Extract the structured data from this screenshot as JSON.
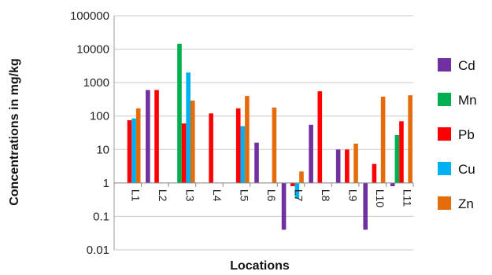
{
  "chart_data": {
    "type": "bar",
    "xlabel": "Locations",
    "ylabel": "Concentrations in mg/kg",
    "yscale": "log",
    "ylim": [
      0.01,
      100000
    ],
    "yticks": [
      "0.01",
      "0.1",
      "1",
      "10",
      "100",
      "1000",
      "10000",
      "100000"
    ],
    "grid": true,
    "legend_position": "right",
    "categories": [
      "L1",
      "L2",
      "L3",
      "L4",
      "L5",
      "L6",
      "L7",
      "L8",
      "L9",
      "L10",
      "L11"
    ],
    "series": [
      {
        "name": "Cd",
        "color": "#7030A0",
        "values": [
          null,
          600,
          null,
          null,
          null,
          16,
          0.04,
          55,
          10,
          0.04,
          0.8
        ]
      },
      {
        "name": "Mn",
        "color": "#00B050",
        "values": [
          null,
          null,
          14500,
          null,
          null,
          null,
          null,
          null,
          null,
          null,
          27
        ]
      },
      {
        "name": "Pb",
        "color": "#FF0000",
        "values": [
          75,
          600,
          60,
          120,
          170,
          null,
          0.8,
          550,
          10,
          3.7,
          70
        ]
      },
      {
        "name": "Cu",
        "color": "#00B0F0",
        "values": [
          85,
          null,
          2000,
          null,
          50,
          null,
          0.35,
          null,
          null,
          null,
          null
        ]
      },
      {
        "name": "Zn",
        "color": "#E46C0A",
        "values": [
          170,
          null,
          290,
          null,
          400,
          180,
          2.2,
          null,
          15,
          380,
          420
        ]
      }
    ]
  }
}
